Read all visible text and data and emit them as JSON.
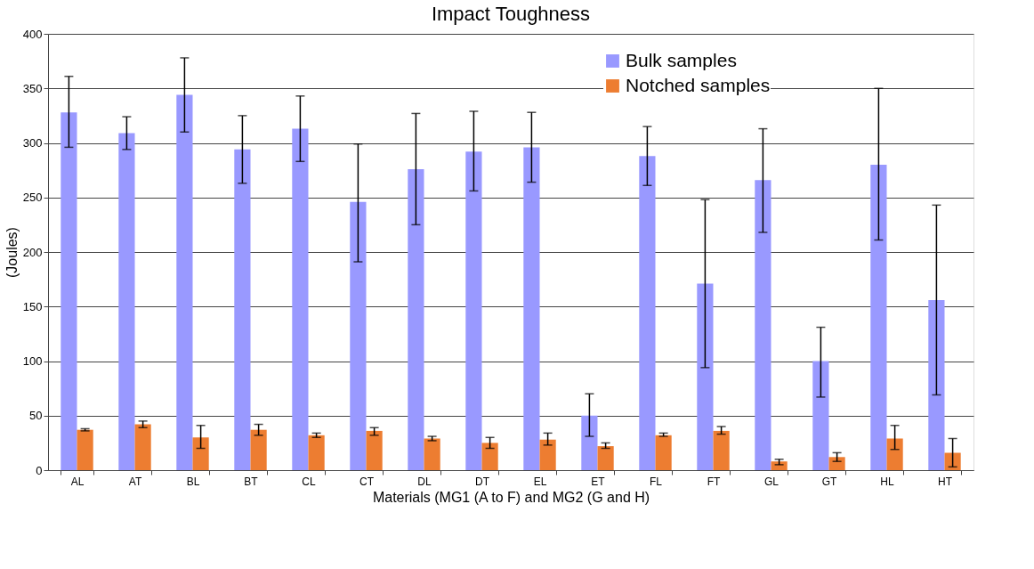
{
  "chart_data": {
    "type": "bar",
    "title": "Impact Toughness",
    "xlabel": "Materials (MG1 (A to F) and MG2 (G and H)",
    "ylabel": "(Joules)",
    "categories": [
      "AL",
      "AT",
      "BL",
      "BT",
      "CL",
      "CT",
      "DL",
      "DT",
      "EL",
      "ET",
      "FL",
      "FT",
      "GL",
      "GT",
      "HL",
      "HT"
    ],
    "series": [
      {
        "name": "Bulk samples",
        "color": "#9999ff",
        "values": [
          328,
          309,
          344,
          294,
          313,
          246,
          276,
          292,
          296,
          50,
          288,
          171,
          266,
          100,
          280,
          156
        ],
        "errors": [
          [
            296,
            361
          ],
          [
            294,
            324
          ],
          [
            310,
            378
          ],
          [
            263,
            325
          ],
          [
            283,
            343
          ],
          [
            191,
            299
          ],
          [
            225,
            327
          ],
          [
            256,
            329
          ],
          [
            264,
            328
          ],
          [
            31,
            70
          ],
          [
            261,
            315
          ],
          [
            94,
            248
          ],
          [
            218,
            313
          ],
          [
            67,
            131
          ],
          [
            211,
            350
          ],
          [
            69,
            243
          ]
        ]
      },
      {
        "name": "Notched samples",
        "color": "#ed7d31",
        "values": [
          37,
          42,
          30,
          37,
          32,
          36,
          29,
          25,
          28,
          22,
          32,
          36,
          8,
          12,
          29,
          16
        ],
        "errors": [
          [
            36,
            38
          ],
          [
            39,
            45
          ],
          [
            20,
            41
          ],
          [
            32,
            42
          ],
          [
            30,
            34
          ],
          [
            32,
            39
          ],
          [
            27,
            31
          ],
          [
            20,
            30
          ],
          [
            23,
            34
          ],
          [
            20,
            25
          ],
          [
            31,
            34
          ],
          [
            33,
            40
          ],
          [
            5,
            10
          ],
          [
            8,
            16
          ],
          [
            19,
            41
          ],
          [
            3,
            29
          ]
        ]
      }
    ],
    "ylim": [
      0,
      400
    ],
    "yticks": [
      0,
      50,
      100,
      150,
      200,
      250,
      300,
      350,
      400
    ],
    "grid": "y",
    "legend": "top right"
  }
}
